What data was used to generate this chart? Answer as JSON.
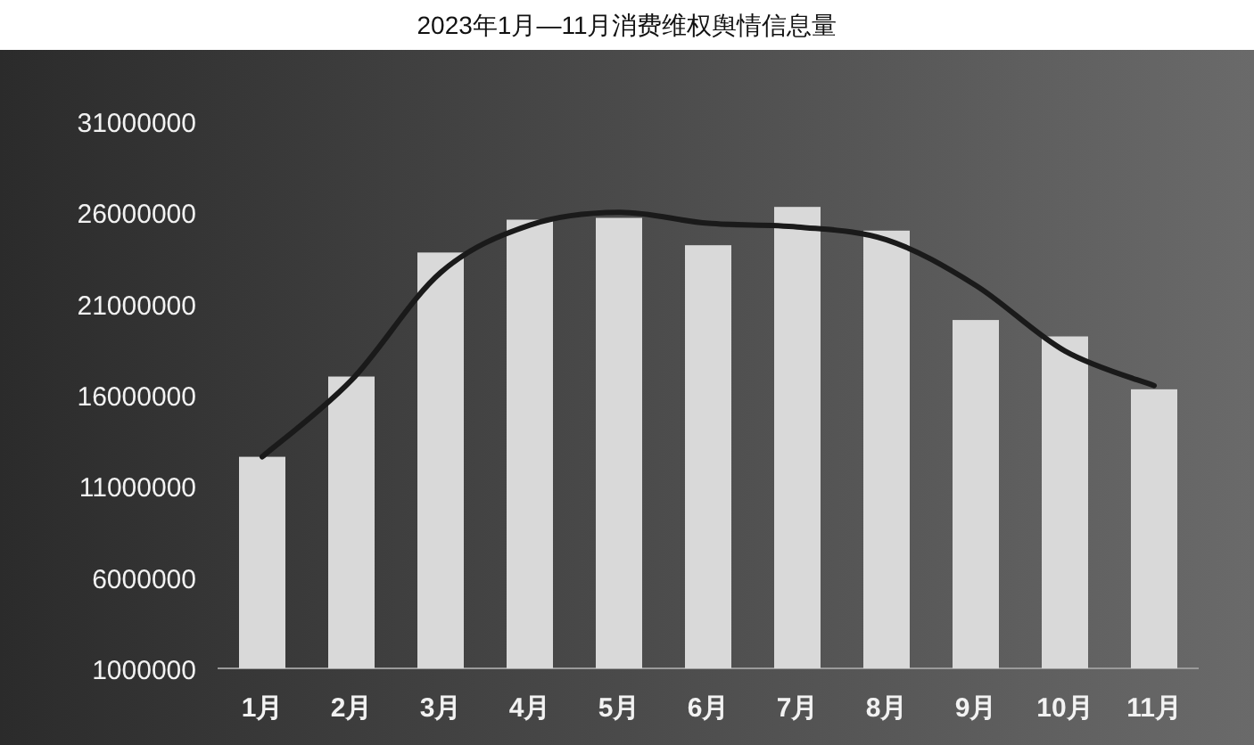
{
  "chart_data": {
    "type": "bar",
    "title": "2023年1月—11月消费维权舆情信息量",
    "categories": [
      "1月",
      "2月",
      "3月",
      "4月",
      "5月",
      "6月",
      "7月",
      "8月",
      "9月",
      "10月",
      "11月"
    ],
    "series": [
      {
        "color": "#d9d9d9",
        "values": [
          12600000,
          17000000,
          23800000,
          25600000,
          25700000,
          24200000,
          26300000,
          25000000,
          20100000,
          19200000,
          16300000
        ]
      },
      {
        "type": "line",
        "color": "#1a1a1a",
        "values": [
          12600000,
          16800000,
          22700000,
          25300000,
          26000000,
          25400000,
          25200000,
          24500000,
          22000000,
          18400000,
          16500000
        ]
      }
    ],
    "ylim": [
      1000000,
      31000000
    ],
    "yticks": [
      1000000,
      6000000,
      11000000,
      16000000,
      21000000,
      26000000,
      31000000
    ],
    "grid": false
  }
}
